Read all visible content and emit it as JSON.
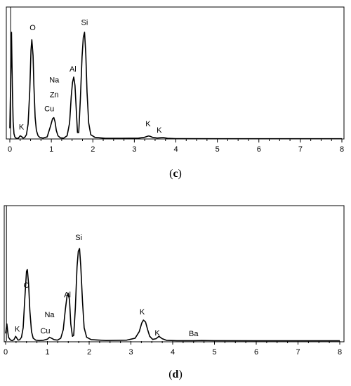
{
  "chart_data": [
    {
      "type": "line",
      "caption": "c",
      "xlim": [
        0,
        8
      ],
      "x_ticks": [
        "0",
        "1",
        "2",
        "3",
        "4",
        "5",
        "6",
        "7",
        "8"
      ],
      "series": [
        {
          "x": [
            0,
            0.04,
            0.06,
            0.08,
            0.1,
            0.12,
            0.15,
            0.2,
            0.25,
            0.29,
            0.32,
            0.36,
            0.4,
            0.44,
            0.48,
            0.51,
            0.53,
            0.56,
            0.58,
            0.61,
            0.64,
            0.68,
            0.72,
            0.8,
            0.9,
            0.98,
            1.03,
            1.06,
            1.09,
            1.12,
            1.16,
            1.22,
            1.3,
            1.38,
            1.44,
            1.48,
            1.51,
            1.54,
            1.57,
            1.6,
            1.63,
            1.66,
            1.7,
            1.74,
            1.77,
            1.8,
            1.83,
            1.86,
            1.9,
            1.95,
            2.05,
            2.3,
            2.7,
            3.1,
            3.24,
            3.3,
            3.34,
            3.38,
            3.44,
            3.55,
            3.62,
            3.7,
            3.8,
            4.0,
            5.0,
            6.0,
            7.0,
            8.0
          ],
          "y": [
            10,
            100,
            50,
            16,
            5,
            2,
            0.8,
            0.5,
            3,
            2,
            0.8,
            1.5,
            4,
            14,
            45,
            83,
            93,
            78,
            50,
            20,
            8,
            3,
            1.5,
            0.8,
            2,
            12,
            19,
            20,
            16,
            8,
            3,
            1,
            0.8,
            3,
            15,
            40,
            53,
            58,
            50,
            28,
            6,
            6,
            38,
            77,
            95,
            100,
            80,
            44,
            15,
            4,
            1.5,
            0.6,
            0.6,
            0.8,
            1.5,
            2.3,
            2.8,
            2.5,
            1.5,
            0.9,
            1.1,
            1.3,
            0.6,
            0.3,
            0.2,
            0.2,
            0.2,
            0.2
          ]
        }
      ],
      "annotations": [
        {
          "text": "O",
          "x": 0.55,
          "y": 1.02
        },
        {
          "text": "Si",
          "x": 1.8,
          "y": 1.07
        },
        {
          "text": "Al",
          "x": 1.52,
          "y": 0.63
        },
        {
          "text": "Na",
          "x": 1.07,
          "y": 0.53
        },
        {
          "text": "Zn",
          "x": 1.07,
          "y": 0.39
        },
        {
          "text": "Cu",
          "x": 0.95,
          "y": 0.26
        },
        {
          "text": "K",
          "x": 0.28,
          "y": 0.09
        },
        {
          "text": "K",
          "x": 3.33,
          "y": 0.12
        },
        {
          "text": "K",
          "x": 3.6,
          "y": 0.06
        }
      ]
    },
    {
      "type": "line",
      "caption": "d",
      "xlim": [
        0,
        8
      ],
      "x_ticks": [
        "0",
        "1",
        "2",
        "3",
        "4",
        "5",
        "6",
        "7",
        "8"
      ],
      "series": [
        {
          "x": [
            0,
            0.03,
            0.05,
            0.07,
            0.1,
            0.13,
            0.16,
            0.2,
            0.24,
            0.27,
            0.3,
            0.34,
            0.38,
            0.42,
            0.46,
            0.5,
            0.52,
            0.55,
            0.58,
            0.62,
            0.66,
            0.72,
            0.8,
            0.9,
            1.0,
            1.05,
            1.1,
            1.16,
            1.24,
            1.32,
            1.38,
            1.43,
            1.47,
            1.5,
            1.53,
            1.56,
            1.6,
            1.63,
            1.67,
            1.71,
            1.74,
            1.77,
            1.8,
            1.84,
            1.88,
            1.94,
            2.05,
            2.4,
            2.9,
            3.1,
            3.2,
            3.26,
            3.3,
            3.35,
            3.4,
            3.45,
            3.52,
            3.6,
            3.67,
            3.75,
            3.85,
            4.1,
            4.5,
            4.7,
            5.0,
            6.0,
            7.0,
            8.0
          ],
          "y": [
            8,
            18,
            10,
            4,
            2,
            0.8,
            0.5,
            1.5,
            5,
            3,
            1,
            1.5,
            4,
            14,
            45,
            73,
            75,
            60,
            32,
            10,
            3,
            1,
            0.5,
            0.8,
            2,
            4,
            3,
            1.5,
            1,
            3,
            12,
            33,
            47,
            50,
            43,
            18,
            5,
            6,
            35,
            78,
            94,
            97,
            78,
            42,
            14,
            4,
            1.5,
            0.6,
            1,
            3,
            10,
            19,
            22,
            20,
            12,
            5,
            1.8,
            2.5,
            5,
            2.5,
            0.8,
            0.4,
            0.4,
            0.6,
            0.4,
            0.3,
            0.3,
            0.3
          ]
        }
      ],
      "annotations": [
        {
          "text": "Si",
          "x": 1.75,
          "y": 1.06
        },
        {
          "text": "O",
          "x": 0.5,
          "y": 0.56
        },
        {
          "text": "Al",
          "x": 1.48,
          "y": 0.46
        },
        {
          "text": "Na",
          "x": 1.05,
          "y": 0.25
        },
        {
          "text": "Cu",
          "x": 0.95,
          "y": 0.08
        },
        {
          "text": "K",
          "x": 0.28,
          "y": 0.1
        },
        {
          "text": "K",
          "x": 3.27,
          "y": 0.28
        },
        {
          "text": "K",
          "x": 3.63,
          "y": 0.06
        },
        {
          "text": "Ba",
          "x": 4.5,
          "y": 0.05
        }
      ]
    }
  ]
}
